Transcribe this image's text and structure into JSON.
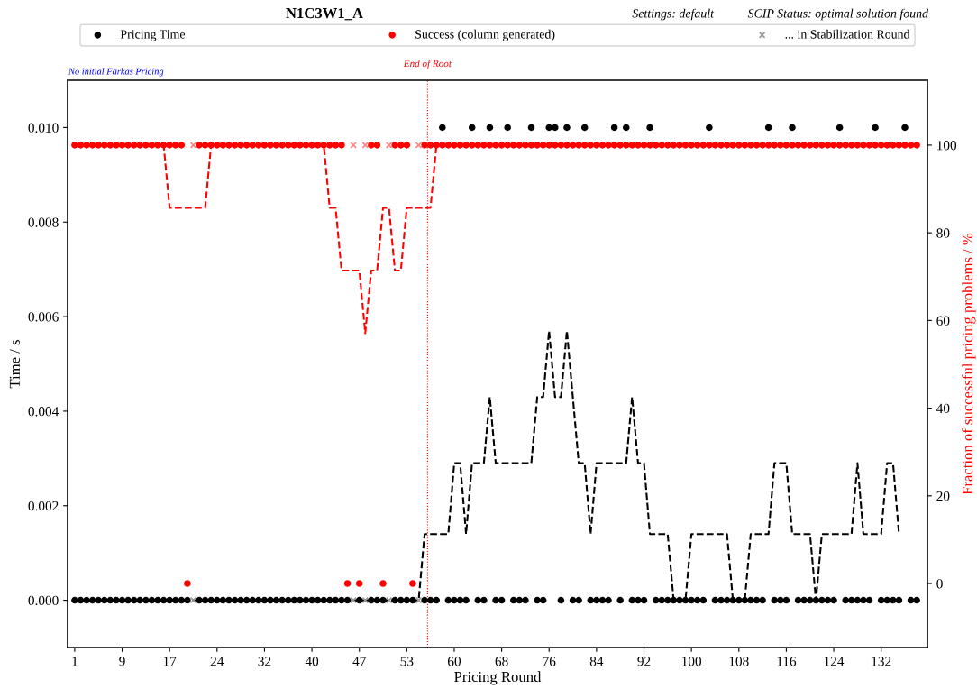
{
  "chart_data": {
    "type": "scatter",
    "title": "N1C3W1_A",
    "annotations": [
      "No initial Farkas Pricing",
      "Settings: default",
      "SCIP Status: optimal solution found",
      "End of Root"
    ],
    "xlabel": "Pricing Round",
    "ylabel": "Time / s",
    "y2label": "Fraction of successful pricing problems / %",
    "categories": [
      "1",
      null,
      null,
      null,
      null,
      null,
      null,
      null,
      "9",
      null,
      null,
      null,
      null,
      null,
      null,
      null,
      "17",
      null,
      null,
      null,
      null,
      null,
      null,
      null,
      "24",
      null,
      null,
      null,
      null,
      null,
      null,
      null,
      "32",
      null,
      null,
      null,
      null,
      null,
      null,
      null,
      "40",
      null,
      null,
      null,
      null,
      null,
      null,
      null,
      "47",
      null,
      null,
      null,
      null,
      null,
      null,
      null,
      "53",
      null,
      null,
      null,
      null,
      null,
      null,
      null,
      "60",
      null,
      null,
      null,
      null,
      null,
      null,
      null,
      "68",
      null,
      null,
      null,
      null,
      null,
      null,
      null,
      "76",
      null,
      null,
      null,
      null,
      null,
      null,
      null,
      "84",
      null,
      null,
      null,
      null,
      null,
      null,
      null,
      "92",
      null,
      null,
      null,
      null,
      null,
      null,
      null,
      "100",
      null,
      null,
      null,
      null,
      null,
      null,
      null,
      "108",
      null,
      null,
      null,
      null,
      null,
      null,
      null,
      "116",
      null,
      null,
      null,
      null,
      null,
      null,
      null,
      "124",
      null,
      null,
      null,
      null,
      null,
      null,
      null,
      "132",
      null,
      null,
      null,
      null,
      null,
      null
    ],
    "ylim": [
      -0.001,
      0.011
    ],
    "yticks": [
      {
        "value": 0,
        "label": "0.000"
      },
      {
        "value": 0.002,
        "label": "0.002"
      },
      {
        "value": 0.004,
        "label": "0.004"
      },
      {
        "value": 0.006,
        "label": "0.006"
      },
      {
        "value": 0.008,
        "label": "0.008"
      },
      {
        "value": 0.01,
        "label": "0.010"
      }
    ],
    "y2lim": [
      -14.6,
      114.8
    ],
    "y2ticks": [
      0,
      20,
      40,
      60,
      80,
      100
    ],
    "legend": "top",
    "series": [
      {
        "name": "Pricing Time",
        "color": "#000000",
        "marker": "circle",
        "values": [
          0,
          0,
          0,
          0,
          0,
          0,
          0,
          0,
          0,
          0,
          0,
          0,
          0,
          0,
          0,
          0,
          0,
          0,
          0,
          0,
          null,
          0,
          0,
          0,
          0,
          0,
          0,
          0,
          0,
          0,
          0,
          0,
          0,
          0,
          0,
          0,
          0,
          0,
          0,
          0,
          0,
          0,
          0,
          0,
          0,
          0,
          0,
          null,
          0,
          null,
          0,
          0,
          0,
          null,
          0,
          0,
          0,
          0,
          null,
          0,
          0,
          0,
          0.01,
          0,
          0,
          0,
          0,
          0.01,
          0,
          0,
          0.01,
          0,
          0,
          0.01,
          0,
          0,
          0,
          0.01,
          0,
          0,
          0.01,
          0.01,
          0,
          0.01,
          0,
          0,
          0.01,
          0,
          0,
          0,
          0,
          0.01,
          0,
          0.01,
          0,
          0,
          0,
          0.01,
          0,
          0,
          0,
          0,
          0,
          0,
          0,
          0,
          0,
          0.01,
          0,
          0,
          0,
          0,
          0,
          0,
          0,
          0,
          0,
          0.01,
          0,
          0,
          0,
          0.01,
          0,
          0,
          0,
          0,
          0,
          0,
          0,
          0.01,
          0,
          0,
          0,
          0,
          0,
          0.01,
          0,
          0,
          0,
          0,
          0.01,
          0,
          0
        ]
      },
      {
        "name": "Success (column generated)",
        "color": "#ff0000",
        "marker": "circle",
        "axis": "y2",
        "values": [
          100,
          100,
          100,
          100,
          100,
          100,
          100,
          100,
          100,
          100,
          100,
          100,
          100,
          100,
          100,
          100,
          100,
          100,
          100,
          0,
          null,
          100,
          100,
          100,
          100,
          100,
          100,
          100,
          100,
          100,
          100,
          100,
          100,
          100,
          100,
          100,
          100,
          100,
          100,
          100,
          100,
          100,
          100,
          100,
          100,
          100,
          0,
          null,
          0,
          null,
          100,
          100,
          0,
          null,
          100,
          100,
          100,
          0,
          null,
          100,
          100,
          100,
          100,
          100,
          100,
          100,
          100,
          100,
          100,
          100,
          100,
          100,
          100,
          100,
          100,
          100,
          100,
          100,
          100,
          100,
          100,
          100,
          100,
          100,
          100,
          100,
          100,
          100,
          100,
          100,
          100,
          100,
          100,
          100,
          100,
          100,
          100,
          100,
          100,
          100,
          100,
          100,
          100,
          100,
          100,
          100,
          100,
          100,
          100,
          100,
          100,
          100,
          100,
          100,
          100,
          100,
          100,
          100,
          100,
          100,
          100,
          100,
          100,
          100,
          100,
          100,
          100,
          100,
          100,
          100,
          100,
          100,
          100,
          100,
          100,
          100,
          100,
          100,
          100,
          100,
          100,
          100,
          100
        ]
      },
      {
        "name": "... in Stabilization Round",
        "color": "#999999",
        "marker": "cross",
        "values": [
          null,
          null,
          null,
          null,
          null,
          null,
          null,
          null,
          null,
          null,
          null,
          null,
          null,
          null,
          null,
          null,
          null,
          null,
          null,
          null,
          0,
          null,
          null,
          null,
          null,
          null,
          null,
          null,
          null,
          null,
          null,
          null,
          null,
          null,
          null,
          null,
          null,
          null,
          null,
          null,
          null,
          null,
          null,
          null,
          null,
          null,
          null,
          0,
          null,
          0,
          null,
          null,
          null,
          0,
          null,
          null,
          null,
          null,
          0,
          null,
          null,
          null,
          null,
          null,
          null,
          null,
          null,
          null,
          null,
          null,
          null,
          null,
          null,
          null,
          null,
          null,
          null,
          null,
          null,
          null,
          null,
          null,
          null,
          null,
          null,
          null,
          null,
          null,
          null,
          null,
          null,
          null,
          null,
          null,
          null,
          null,
          null,
          null,
          null,
          null,
          null,
          null,
          null,
          null,
          null,
          null,
          null,
          null,
          null,
          null,
          null,
          null,
          null,
          null,
          null,
          null,
          null,
          null,
          null,
          null,
          null,
          null,
          null,
          null,
          null,
          null,
          null,
          null,
          null,
          null,
          null,
          null,
          null,
          null,
          null,
          null,
          null,
          null,
          null,
          null,
          null,
          null,
          null
        ]
      },
      {
        "color": "#ff8080",
        "marker": "cross",
        "axis": "y2",
        "values": [
          null,
          null,
          null,
          null,
          null,
          null,
          null,
          null,
          null,
          null,
          null,
          null,
          null,
          null,
          null,
          null,
          null,
          null,
          null,
          null,
          100,
          null,
          null,
          null,
          null,
          null,
          null,
          null,
          null,
          null,
          null,
          null,
          null,
          null,
          null,
          null,
          null,
          null,
          null,
          null,
          null,
          null,
          null,
          null,
          null,
          null,
          null,
          100,
          null,
          100,
          null,
          null,
          null,
          100,
          null,
          null,
          null,
          null,
          100,
          null,
          null,
          null,
          null,
          null,
          null,
          null,
          null,
          null,
          null,
          null,
          null,
          null,
          null,
          null,
          null,
          null,
          null,
          null,
          null,
          null,
          null,
          null,
          null,
          null,
          null,
          null,
          null,
          null,
          null,
          null,
          null,
          null,
          null,
          null,
          null,
          null,
          null,
          null,
          null,
          null,
          null,
          null,
          null,
          null,
          null,
          null,
          null,
          null,
          null,
          null,
          null,
          null,
          null,
          null,
          null,
          null,
          null,
          null,
          null,
          null,
          null,
          null,
          null,
          null,
          null,
          null,
          null,
          null,
          null,
          null,
          null,
          null,
          null,
          null,
          null,
          null,
          null,
          null,
          null,
          null,
          null,
          null,
          null
        ]
      },
      {
        "type": "line",
        "color": "#000000",
        "marker": "none",
        "line_style": "dashed",
        "values": [
          null,
          null,
          null,
          0,
          0,
          0,
          0,
          0,
          0,
          0,
          0,
          0,
          0,
          0,
          0,
          0,
          0,
          0,
          0,
          0,
          0,
          0,
          0,
          0,
          0,
          0,
          0,
          0,
          0,
          0,
          0,
          0,
          0,
          0,
          0,
          0,
          0,
          0,
          0,
          0,
          0,
          0,
          0,
          0,
          0,
          0,
          0,
          0,
          0,
          0,
          0,
          0,
          0,
          0,
          0,
          0,
          0,
          0,
          0,
          0.0014,
          0.0014,
          0.0014,
          0.0014,
          0.0014,
          0.0029,
          0.0029,
          0.0014,
          0.0029,
          0.0029,
          0.0029,
          0.0043,
          0.0029,
          0.0029,
          0.0029,
          0.0029,
          0.0029,
          0.0029,
          0.0029,
          0.0043,
          0.0043,
          0.0057,
          0.0043,
          0.0043,
          0.0057,
          0.0043,
          0.0029,
          0.0029,
          0.0014,
          0.0029,
          0.0029,
          0.0029,
          0.0029,
          0.0029,
          0.0029,
          0.0043,
          0.0029,
          0.0029,
          0.0014,
          0.0014,
          0.0014,
          0.0014,
          0,
          0,
          0,
          0.0014,
          0.0014,
          0.0014,
          0.0014,
          0.0014,
          0.0014,
          0.0014,
          0,
          0,
          0,
          0.0014,
          0.0014,
          0.0014,
          0.0014,
          0.0029,
          0.0029,
          0.0029,
          0.0014,
          0.0014,
          0.0014,
          0.0014,
          0,
          0.0014,
          0.0014,
          0.0014,
          0.0014,
          0.0014,
          0.0014,
          0.0029,
          0.0014,
          0.0014,
          0.0014,
          0.0014,
          0.0029,
          0.0029,
          0.0014,
          null,
          null,
          null
        ]
      },
      {
        "type": "line",
        "color": "#ff0000",
        "marker": "none",
        "line_style": "dashed",
        "axis": "y2",
        "values": [
          null,
          null,
          null,
          100,
          100,
          100,
          100,
          100,
          100,
          100,
          100,
          100,
          100,
          100,
          100,
          100,
          85.7,
          85.7,
          85.7,
          85.7,
          85.7,
          85.7,
          85.7,
          100,
          100,
          100,
          100,
          100,
          100,
          100,
          100,
          100,
          100,
          100,
          100,
          100,
          100,
          100,
          100,
          100,
          100,
          100,
          100,
          85.7,
          85.7,
          71.4,
          71.4,
          71.4,
          71.4,
          57.1,
          71.4,
          71.4,
          85.7,
          85.7,
          71.4,
          71.4,
          85.7,
          85.7,
          85.7,
          85.7,
          85.7,
          100,
          100,
          100,
          100,
          100,
          100,
          100,
          100,
          100,
          100,
          100,
          100,
          100,
          100,
          100,
          100,
          100,
          100,
          100,
          100,
          100,
          100,
          100,
          100,
          100,
          100,
          100,
          100,
          100,
          100,
          100,
          100,
          100,
          100,
          100,
          100,
          100,
          100,
          100,
          100,
          100,
          100,
          100,
          100,
          100,
          100,
          100,
          100,
          100,
          100,
          100,
          100,
          100,
          100,
          100,
          100,
          100,
          100,
          100,
          100,
          100,
          100,
          100,
          100,
          100,
          100,
          100,
          100,
          100,
          100,
          100,
          100,
          100,
          100,
          100,
          100,
          100,
          100,
          100,
          null,
          null,
          null
        ]
      }
    ]
  }
}
